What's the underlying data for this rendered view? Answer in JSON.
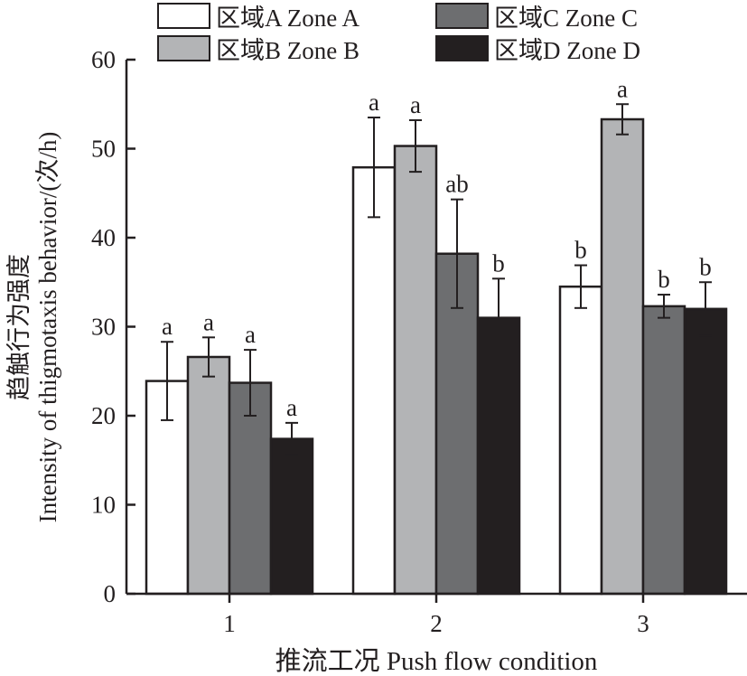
{
  "chart_data": {
    "type": "bar",
    "title": "",
    "xlabel": "推流工况 Push flow condition",
    "ylabel_cn": "趋触行为强度",
    "ylabel": "Intensity of thigmotaxis behavior/(次/h)",
    "ylim": [
      0,
      60
    ],
    "yticks": [
      0,
      10,
      20,
      30,
      40,
      50,
      60
    ],
    "categories": [
      "1",
      "2",
      "3"
    ],
    "legend_position": "top",
    "series": [
      {
        "name": "区域A Zone A",
        "color": "#ffffff",
        "values": [
          23.9,
          47.9,
          34.5
        ],
        "errors": [
          4.4,
          5.6,
          2.4
        ],
        "labels": [
          "a",
          "a",
          "b"
        ]
      },
      {
        "name": "区域B Zone B",
        "color": "#b3b4b6",
        "values": [
          26.6,
          50.3,
          53.3
        ],
        "errors": [
          2.2,
          2.9,
          1.7
        ],
        "labels": [
          "a",
          "a",
          "a"
        ]
      },
      {
        "name": "区域C Zone C",
        "color": "#6d6e70",
        "values": [
          23.7,
          38.2,
          32.3
        ],
        "errors": [
          3.7,
          6.1,
          1.3
        ],
        "labels": [
          "a",
          "ab",
          "b"
        ]
      },
      {
        "name": "区域D Zone D",
        "color": "#231f20",
        "values": [
          17.4,
          31.0,
          32.0
        ],
        "errors": [
          1.8,
          4.4,
          3.0
        ],
        "labels": [
          "a",
          "b",
          "b"
        ]
      }
    ]
  }
}
